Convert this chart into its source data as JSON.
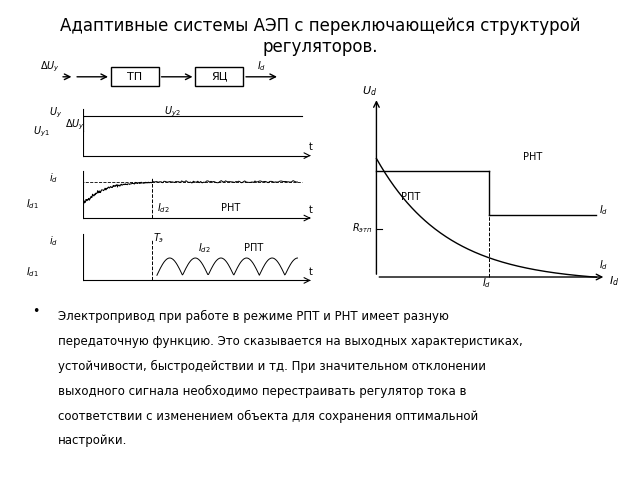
{
  "title": "Адаптивные системы АЭП с переключающейся структурой\nрегуляторов.",
  "title_fontsize": 12,
  "bg_color": "#ffffff",
  "line_color": "#000000",
  "text_color": "#000000",
  "bullet_lines": [
    "Электропривод при работе в режиме РПТ и РНТ имеет разную",
    "передаточную функцию. Это сказывается на выходных характеристиках,",
    "устойчивости, быстродействии и тд. При значительном отклонении",
    "выходного сигнала необходимо перестраивать регулятор тока в",
    "соответствии с изменением объекта для сохранения оптимальной",
    "настройки."
  ]
}
